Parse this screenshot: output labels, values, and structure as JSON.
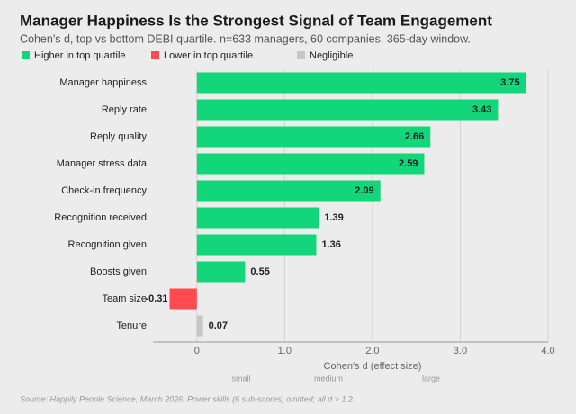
{
  "chart_data": {
    "type": "hbar",
    "title": "Manager Happiness Is the Strongest Signal of Team Engagement",
    "subtitle": "Cohen's d, top vs bottom DEBI quartile. n=633 managers, 60 companies. 365-day window.",
    "legend": [
      {
        "name": "Higher in top quartile",
        "color": "#13d67a"
      },
      {
        "name": "Lower in top quartile",
        "color": "#ff4b4f"
      },
      {
        "name": "Negligible",
        "color": "#c6c6c6"
      }
    ],
    "categories": [
      "Manager happiness",
      "Reply rate",
      "Reply quality",
      "Manager stress data",
      "Check-in frequency",
      "Recognition received",
      "Recognition given",
      "Boosts given",
      "Team size",
      "Tenure"
    ],
    "values": [
      3.75,
      3.43,
      2.66,
      2.59,
      2.09,
      1.39,
      1.36,
      0.55,
      -0.31,
      0.07
    ],
    "colors": [
      "#13d67a",
      "#13d67a",
      "#13d67a",
      "#13d67a",
      "#13d67a",
      "#13d67a",
      "#13d67a",
      "#13d67a",
      "#ff4b4f",
      "#c6c6c6"
    ],
    "xlim": [
      -0.5,
      4.0
    ],
    "xticks": [
      0,
      {
        "value": 1,
        "label": "1.0"
      },
      {
        "value": 2,
        "label": "2.0"
      },
      {
        "value": 3,
        "label": "3.0"
      },
      {
        "value": 4,
        "label": "4.0"
      }
    ],
    "xlabel": "Cohen's d (effect size)",
    "annotations": [
      "small",
      "medium",
      "large"
    ],
    "grid": true,
    "source": "Source: Happily People Science, March 2026. Power skills (6 sub-scores) omitted; all d > 1.2."
  }
}
